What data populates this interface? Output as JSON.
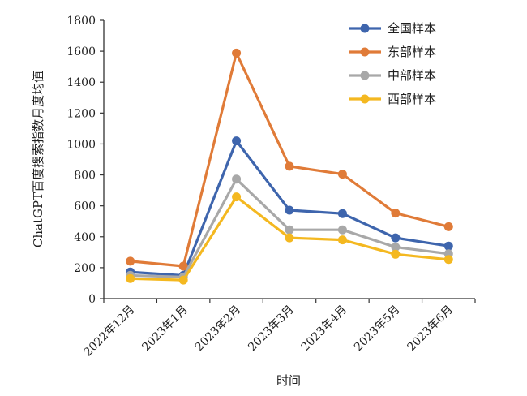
{
  "chart_data": {
    "type": "line",
    "title": "",
    "xlabel": "时间",
    "ylabel": "ChatGPT百度搜索指数月度均值",
    "categories": [
      "2022年12月",
      "2023年1月",
      "2023年2月",
      "2023年3月",
      "2023年4月",
      "2023年5月",
      "2023年6月"
    ],
    "ylim": [
      0,
      1800
    ],
    "yticks": [
      0,
      200,
      400,
      600,
      800,
      1000,
      1200,
      1400,
      1600,
      1800
    ],
    "grid": false,
    "legend_position": "top-right",
    "series": [
      {
        "name": "全国样本",
        "color": "#3e65ad",
        "values": [
          172,
          150,
          1020,
          572,
          550,
          393,
          340
        ]
      },
      {
        "name": "东部样本",
        "color": "#e07b38",
        "values": [
          242,
          210,
          1588,
          856,
          805,
          553,
          465
        ]
      },
      {
        "name": "中部样本",
        "color": "#a8a8a8",
        "values": [
          150,
          140,
          773,
          445,
          445,
          333,
          290
        ]
      },
      {
        "name": "西部样本",
        "color": "#f4b820",
        "values": [
          130,
          120,
          658,
          393,
          380,
          287,
          253
        ]
      }
    ]
  }
}
